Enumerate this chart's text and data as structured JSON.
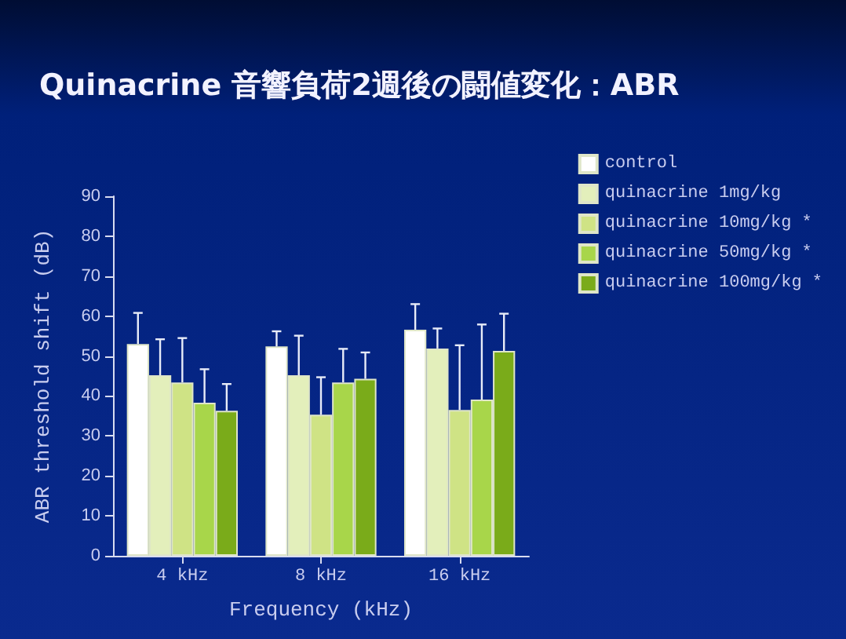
{
  "chart_data": {
    "type": "bar",
    "title": "Quinacrine 音響負荷2週後の闘値変化：ABR",
    "xlabel": "Frequency (kHz)",
    "ylabel": "ABR threshold shift (dB)",
    "categories": [
      "4 kHz",
      "8 kHz",
      "16 kHz"
    ],
    "series": [
      {
        "name": "control",
        "color": "#ffffff",
        "values": [
          53,
          52.4,
          56.6
        ],
        "errors": [
          [
            53,
            60.8
          ],
          [
            52.4,
            56.2
          ],
          [
            56.6,
            63
          ]
        ]
      },
      {
        "name": "quinacrine 1mg/kg",
        "color": "#e3efbb",
        "values": [
          45.2,
          45.2,
          51.9
        ],
        "errors": [
          [
            45.2,
            54.2
          ],
          [
            45.2,
            55.1
          ],
          [
            51.9,
            56.9
          ]
        ]
      },
      {
        "name": "quinacrine 10mg/kg *",
        "color": "#cfe385",
        "values": [
          43.4,
          35.3,
          36.5
        ],
        "errors": [
          [
            43.4,
            54.5
          ],
          [
            35.3,
            44.7
          ],
          [
            36.5,
            52.7
          ]
        ]
      },
      {
        "name": "quinacrine 50mg/kg *",
        "color": "#a8d64a",
        "values": [
          38.3,
          43.4,
          39.1
        ],
        "errors": [
          [
            38.3,
            46.7
          ],
          [
            43.4,
            51.8
          ],
          [
            39.1,
            57.9
          ]
        ]
      },
      {
        "name": "quinacrine 100mg/kg *",
        "color": "#7aab1a",
        "values": [
          36.3,
          44.3,
          51.3
        ],
        "errors": [
          [
            36.3,
            43
          ],
          [
            44.3,
            50.9
          ],
          [
            51.3,
            60.6
          ]
        ]
      }
    ],
    "ylim": [
      0,
      90
    ],
    "yticks": [
      0,
      10,
      20,
      30,
      40,
      50,
      60,
      70,
      80,
      90
    ],
    "grid": false,
    "legend": "top right"
  }
}
